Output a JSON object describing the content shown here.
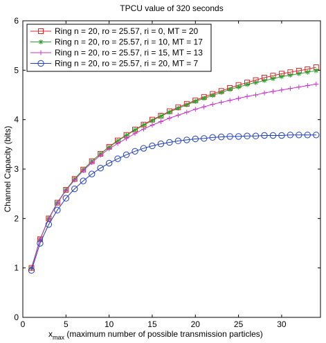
{
  "chart_data": {
    "type": "line",
    "title": "TPCU value of 320 seconds",
    "xlabel_main": "x",
    "xlabel_sub": "max",
    "xlabel_rest": " (maximum number of possible transmission particles)",
    "ylabel": "Channel Capacity (bits)",
    "xlim": [
      0,
      34.5
    ],
    "ylim": [
      0,
      6
    ],
    "x_ticks": [
      0,
      5,
      10,
      15,
      20,
      25,
      30
    ],
    "y_ticks": [
      0,
      1,
      2,
      3,
      4,
      5,
      6
    ],
    "grid": false,
    "legend_position": "top-left",
    "x": [
      1,
      2,
      3,
      4,
      5,
      6,
      7,
      8,
      9,
      10,
      11,
      12,
      13,
      14,
      15,
      16,
      17,
      18,
      19,
      20,
      21,
      22,
      23,
      24,
      25,
      26,
      27,
      28,
      29,
      30,
      31,
      32,
      33,
      34
    ],
    "series": [
      {
        "name": "Ring n = 20, ro = 25.57, ri = 0, MT = 20",
        "color": "#d62728",
        "marker": "square",
        "values": [
          1.0,
          1.58,
          2.0,
          2.32,
          2.58,
          2.8,
          2.99,
          3.16,
          3.31,
          3.45,
          3.58,
          3.69,
          3.8,
          3.9,
          4.0,
          4.08,
          4.17,
          4.25,
          4.32,
          4.39,
          4.46,
          4.52,
          4.58,
          4.64,
          4.7,
          4.75,
          4.8,
          4.85,
          4.89,
          4.93,
          4.96,
          4.99,
          5.02,
          5.06
        ]
      },
      {
        "name": "Ring n = 20, ro = 25.57, ri = 10, MT = 17",
        "color": "#2ca02c",
        "marker": "asterisk",
        "values": [
          1.0,
          1.58,
          2.0,
          2.32,
          2.58,
          2.8,
          2.99,
          3.16,
          3.31,
          3.44,
          3.57,
          3.68,
          3.79,
          3.89,
          3.98,
          4.07,
          4.15,
          4.23,
          4.3,
          4.37,
          4.43,
          4.49,
          4.55,
          4.61,
          4.66,
          4.71,
          4.75,
          4.79,
          4.83,
          4.87,
          4.9,
          4.93,
          4.96,
          4.99
        ]
      },
      {
        "name": "Ring n = 20, ro = 25.57, ri = 15, MT = 13",
        "color": "#c832c8",
        "marker": "plus",
        "values": [
          0.99,
          1.58,
          1.99,
          2.31,
          2.57,
          2.78,
          2.97,
          3.13,
          3.28,
          3.41,
          3.52,
          3.62,
          3.72,
          3.81,
          3.89,
          3.96,
          4.03,
          4.09,
          4.15,
          4.21,
          4.26,
          4.31,
          4.35,
          4.39,
          4.43,
          4.47,
          4.5,
          4.54,
          4.57,
          4.6,
          4.63,
          4.66,
          4.69,
          4.72
        ]
      },
      {
        "name": "Ring n = 20, ro = 25.57, ri = 20, MT = 7",
        "color": "#1f3fbf",
        "marker": "circle",
        "values": [
          0.95,
          1.5,
          1.88,
          2.17,
          2.41,
          2.6,
          2.76,
          2.9,
          3.02,
          3.12,
          3.21,
          3.29,
          3.36,
          3.42,
          3.47,
          3.51,
          3.54,
          3.57,
          3.59,
          3.61,
          3.62,
          3.64,
          3.65,
          3.66,
          3.66,
          3.67,
          3.67,
          3.68,
          3.68,
          3.68,
          3.69,
          3.69,
          3.69,
          3.69
        ]
      }
    ]
  }
}
